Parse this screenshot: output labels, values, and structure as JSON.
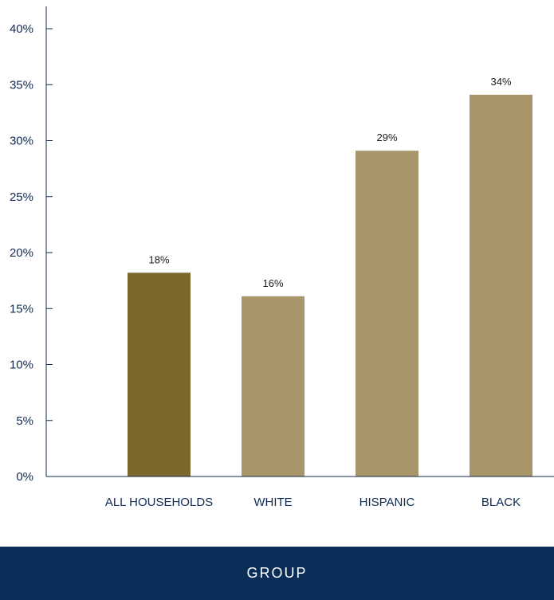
{
  "chart_data": {
    "type": "bar",
    "categories": [
      "ALL HOUSEHOLDS",
      "WHITE",
      "HISPANIC",
      "BLACK"
    ],
    "values": [
      18.2,
      16.1,
      29.1,
      34.1
    ],
    "data_labels": [
      "18%",
      "16%",
      "29%",
      "34%"
    ],
    "title": "",
    "xlabel": "GROUP",
    "ylabel": "",
    "ylim": [
      0,
      40
    ],
    "y_ticks": [
      0,
      5,
      10,
      15,
      20,
      25,
      30,
      35,
      40
    ],
    "y_tick_labels": [
      "0%",
      "5%",
      "10%",
      "15%",
      "20%",
      "25%",
      "30%",
      "35%",
      "40%"
    ],
    "grid": false,
    "colors": {
      "highlight_bar": "#7b682c",
      "bar": "#a8956a",
      "axis": "#0f2a55",
      "footer_bg": "#0a2e58"
    }
  }
}
